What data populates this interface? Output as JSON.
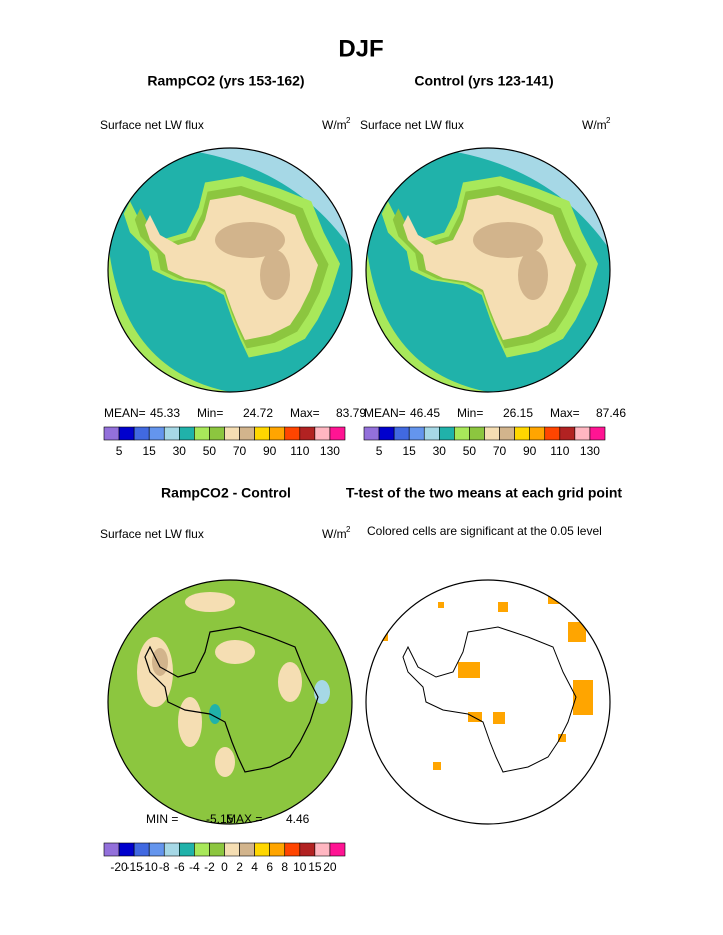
{
  "title": "DJF",
  "panels": [
    {
      "title": "RampCO2 (yrs 153-162)",
      "variable": "Surface net LW flux",
      "units": "W/m",
      "units_exponent": "2",
      "stats": [
        {
          "label": "MEAN=",
          "value": 45.33
        },
        {
          "label": "Min=",
          "value": 24.72
        },
        {
          "label": "Max=",
          "value": 83.79
        }
      ],
      "colorbar": {
        "colors": [
          "#9370db",
          "#0000cd",
          "#4169e1",
          "#6495ed",
          "#a6d8e6",
          "#20b2aa",
          "#a8e85a",
          "#8cc63f",
          "#f5deb3",
          "#d2b48c",
          "#ffd700",
          "#ffa500",
          "#ff4500",
          "#b22222",
          "#ffb6c1",
          "#ff1493"
        ],
        "labels": [
          5,
          15,
          30,
          50,
          70,
          90,
          110,
          130
        ]
      }
    },
    {
      "title": "Control (yrs 123-141)",
      "variable": "Surface net LW flux",
      "units": "W/m",
      "units_exponent": "2",
      "stats": [
        {
          "label": "MEAN=",
          "value": 46.45
        },
        {
          "label": "Min=",
          "value": 26.15
        },
        {
          "label": "Max=",
          "value": 87.46
        }
      ],
      "colorbar": {
        "colors": [
          "#9370db",
          "#0000cd",
          "#4169e1",
          "#6495ed",
          "#a6d8e6",
          "#20b2aa",
          "#a8e85a",
          "#8cc63f",
          "#f5deb3",
          "#d2b48c",
          "#ffd700",
          "#ffa500",
          "#ff4500",
          "#b22222",
          "#ffb6c1",
          "#ff1493"
        ],
        "labels": [
          5,
          15,
          30,
          50,
          70,
          90,
          110,
          130
        ]
      }
    },
    {
      "title": "RampCO2 - Control",
      "variable": "Surface net LW flux",
      "units": "W/m",
      "units_exponent": "2",
      "stats": [
        {
          "label": "MIN =",
          "value": -5.15
        },
        {
          "label": "MAX =",
          "value": 4.46
        }
      ],
      "colorbar": {
        "colors": [
          "#9370db",
          "#0000cd",
          "#4169e1",
          "#6495ed",
          "#a6d8e6",
          "#20b2aa",
          "#a8e85a",
          "#8cc63f",
          "#f5deb3",
          "#d2b48c",
          "#ffd700",
          "#ffa500",
          "#ff4500",
          "#b22222",
          "#ffb6c1",
          "#ff1493"
        ],
        "labels": [
          -20,
          -15,
          -10,
          -8,
          -6,
          -4,
          -2,
          0,
          2,
          4,
          6,
          8,
          10,
          15,
          20
        ]
      }
    },
    {
      "title": "T-test of the two means at each grid point",
      "note": "Colored cells are significant at the 0.05 level"
    }
  ]
}
